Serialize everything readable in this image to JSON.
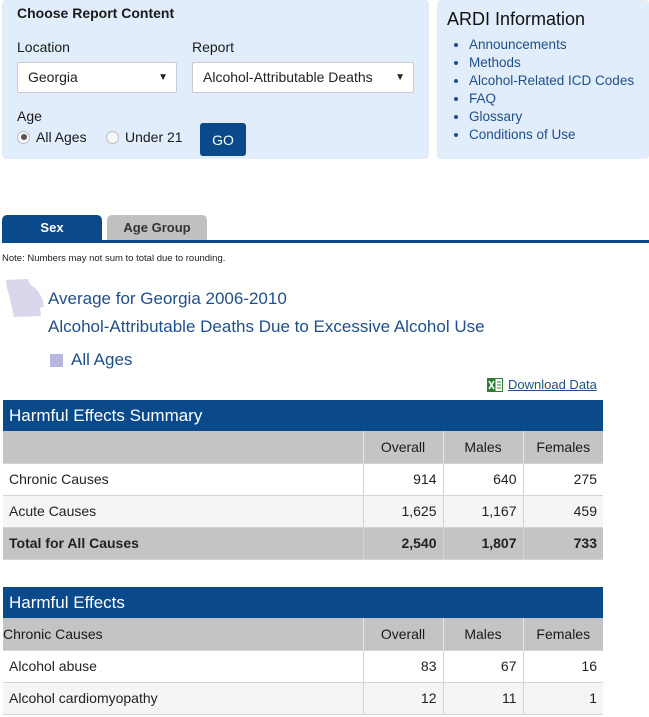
{
  "filters": {
    "title": "Choose Report Content",
    "location_label": "Location",
    "location_value": "Georgia",
    "report_label": "Report",
    "report_value": "Alcohol-Attributable Deaths",
    "age_label": "Age",
    "age_options": [
      "All Ages",
      "Under 21"
    ],
    "age_selected": "All Ages",
    "go_label": "GO"
  },
  "info": {
    "title": "ARDI Information",
    "links": [
      "Announcements",
      "Methods",
      "Alcohol-Related ICD Codes",
      "FAQ",
      "Glossary",
      "Conditions of Use"
    ]
  },
  "tabs": [
    "Sex",
    "Age Group"
  ],
  "active_tab": "Sex",
  "note": "Note: Numbers may not sum to total due to rounding.",
  "report_header": {
    "line1": "Average for Georgia 2006-2010",
    "line2": "Alcohol-Attributable Deaths Due to Excessive Alcohol Use",
    "legend": "All Ages"
  },
  "download_label": "Download Data",
  "summary_table": {
    "title": "Harmful Effects Summary",
    "columns": [
      "",
      "Overall",
      "Males",
      "Females"
    ],
    "rows": [
      {
        "label": "Chronic Causes",
        "overall": "914",
        "males": "640",
        "females": "275"
      },
      {
        "label": "Acute Causes",
        "overall": "1,625",
        "males": "1,167",
        "females": "459"
      }
    ],
    "total": {
      "label": "Total for All Causes",
      "overall": "2,540",
      "males": "1,807",
      "females": "733"
    }
  },
  "effects_table": {
    "title": "Harmful Effects",
    "columns": [
      "Chronic Causes",
      "Overall",
      "Males",
      "Females"
    ],
    "rows": [
      {
        "label": "Alcohol abuse",
        "overall": "83",
        "males": "67",
        "females": "16"
      },
      {
        "label": "Alcohol cardiomyopathy",
        "overall": "12",
        "males": "11",
        "females": "1"
      }
    ]
  },
  "colors": {
    "accent": "#0a4a8a",
    "panel": "#e1edfa",
    "link": "#1f4f8a",
    "legend_swatch": "#b8b6e0"
  }
}
